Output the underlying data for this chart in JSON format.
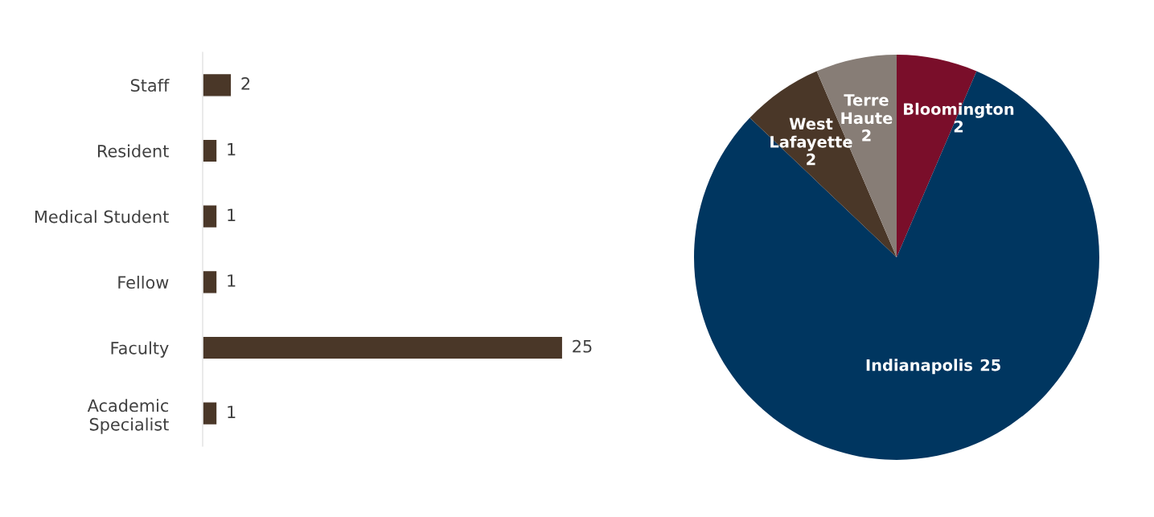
{
  "chart_data": [
    {
      "type": "bar",
      "orientation": "horizontal",
      "data_labels": true,
      "grid": false,
      "legend": false,
      "tick_labels": "y",
      "categories": [
        "Staff",
        "Resident",
        "Medical Student",
        "Fellow",
        "Faculty",
        "Academic\nSpecialist"
      ],
      "values": [
        2,
        1,
        1,
        1,
        25,
        1
      ],
      "color": "#4a3728"
    },
    {
      "type": "pie",
      "data_labels": true,
      "legend": false,
      "categories": [
        "Bloomington",
        "Indianapolis",
        "West\nLafayette",
        "Terre\nHaute"
      ],
      "values": [
        2,
        25,
        2,
        2
      ],
      "colors": [
        "#7a0e2a",
        "#003660",
        "#4a3728",
        "#877d76"
      ]
    }
  ]
}
